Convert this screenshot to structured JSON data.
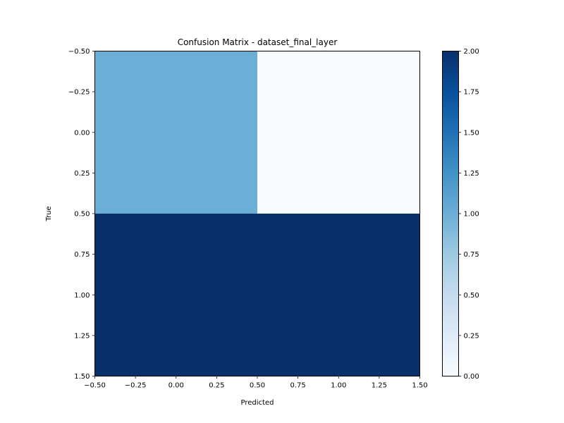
{
  "chart_data": {
    "type": "heatmap",
    "title": "Confusion Matrix - dataset_final_layer",
    "xlabel": "Predicted",
    "ylabel": "True",
    "matrix": [
      [
        1,
        0
      ],
      [
        2,
        2
      ]
    ],
    "xlim": [
      -0.5,
      1.5
    ],
    "ylim": [
      1.5,
      -0.5
    ],
    "x_ticks": [
      "−0.50",
      "−0.25",
      "0.00",
      "0.25",
      "0.50",
      "0.75",
      "1.00",
      "1.25",
      "1.50"
    ],
    "y_ticks": [
      "−0.50",
      "−0.25",
      "0.00",
      "0.25",
      "0.50",
      "0.75",
      "1.00",
      "1.25",
      "1.50"
    ],
    "colormap": "Blues",
    "colorbar": {
      "min": 0,
      "max": 2,
      "ticks": [
        "0.00",
        "0.25",
        "0.50",
        "0.75",
        "1.00",
        "1.25",
        "1.50",
        "1.75",
        "2.00"
      ]
    },
    "grid": false
  }
}
